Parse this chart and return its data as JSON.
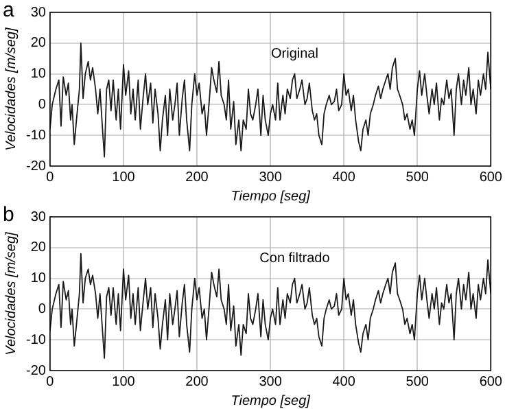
{
  "chart_data": [
    {
      "type": "line",
      "title": "a",
      "xlabel": "Tiempo [seg]",
      "ylabel": "Velocidades [m/seg]",
      "annotations": [
        "Original"
      ],
      "xlim": [
        0,
        600
      ],
      "ylim": [
        -20,
        30
      ],
      "xticks": [
        0,
        100,
        200,
        300,
        400,
        500,
        600
      ],
      "yticks": [
        -20,
        -10,
        0,
        10,
        20,
        30
      ],
      "grid": true,
      "x": [
        0,
        3,
        8,
        12,
        15,
        18,
        22,
        25,
        28,
        30,
        33,
        36,
        40,
        42,
        45,
        48,
        52,
        55,
        58,
        62,
        65,
        68,
        72,
        74,
        77,
        80,
        83,
        86,
        90,
        93,
        96,
        100,
        103,
        107,
        110,
        113,
        116,
        120,
        123,
        127,
        130,
        133,
        137,
        140,
        143,
        147,
        150,
        153,
        157,
        160,
        163,
        167,
        170,
        173,
        176,
        180,
        183,
        186,
        190,
        193,
        197,
        200,
        203,
        207,
        210,
        213,
        217,
        220,
        223,
        227,
        230,
        233,
        237,
        240,
        243,
        246,
        250,
        253,
        257,
        260,
        263,
        267,
        270,
        273,
        276,
        280,
        283,
        287,
        290,
        293,
        297,
        300,
        303,
        307,
        310,
        313,
        317,
        320,
        323,
        327,
        330,
        333,
        336,
        340,
        343,
        347,
        350,
        353,
        357,
        360,
        363,
        366,
        370,
        373,
        376,
        380,
        383,
        387,
        390,
        393,
        397,
        400,
        403,
        406,
        410,
        413,
        416,
        420,
        423,
        426,
        430,
        433,
        436,
        440,
        443,
        447,
        450,
        453,
        457,
        460,
        463,
        466,
        470,
        473,
        476,
        480,
        483,
        486,
        490,
        493,
        496,
        500,
        503,
        506,
        510,
        513,
        516,
        520,
        523,
        526,
        530,
        533,
        536,
        540,
        543,
        546,
        550,
        553,
        556,
        560,
        563,
        566,
        570,
        573,
        576,
        580,
        583,
        586,
        590,
        593,
        596,
        600
      ],
      "series": [
        {
          "color": "#1a1a1a",
          "values": [
            -8,
            0,
            5,
            8,
            -7,
            9,
            3,
            7,
            -5,
            0,
            -13,
            -5,
            5,
            20,
            2,
            10,
            14,
            8,
            12,
            5,
            -3,
            5,
            -10,
            -17,
            5,
            8,
            -2,
            8,
            -5,
            5,
            -8,
            13,
            3,
            11,
            -3,
            5,
            -5,
            8,
            -8,
            3,
            10,
            0,
            7,
            -6,
            5,
            -3,
            -15,
            -5,
            3,
            -10,
            5,
            -5,
            0,
            7,
            -10,
            2,
            8,
            -5,
            -15,
            0,
            10,
            3,
            7,
            -3,
            0,
            -10,
            2,
            12,
            8,
            4,
            14,
            3,
            0,
            -5,
            8,
            -8,
            1,
            -13,
            -5,
            -15,
            -5,
            -8,
            5,
            -3,
            -5,
            0,
            5,
            -10,
            3,
            -5,
            -10,
            -3,
            0,
            -5,
            7,
            -5,
            3,
            -3,
            5,
            2,
            8,
            10,
            2,
            5,
            8,
            0,
            2,
            7,
            -2,
            -5,
            -3,
            -10,
            -13,
            -3,
            0,
            3,
            0,
            1,
            5,
            -2,
            0,
            10,
            3,
            5,
            -2,
            3,
            -5,
            -12,
            -15,
            -8,
            -5,
            -10,
            -3,
            0,
            3,
            6,
            2,
            5,
            8,
            10,
            5,
            12,
            15,
            5,
            3,
            0,
            -5,
            -3,
            -8,
            -5,
            -10,
            5,
            11,
            3,
            10,
            3,
            -3,
            5,
            0,
            7,
            -5,
            2,
            0,
            8,
            2,
            5,
            -10,
            5,
            10,
            0,
            8,
            3,
            12,
            0,
            5,
            -3,
            8,
            3,
            10,
            5,
            17,
            5
          ]
        }
      ]
    },
    {
      "type": "line",
      "title": "b",
      "xlabel": "Tiempo [seg]",
      "ylabel": "Velocidades [m/seg]",
      "annotations": [
        "Con filtrado"
      ],
      "xlim": [
        0,
        600
      ],
      "ylim": [
        -20,
        30
      ],
      "xticks": [
        0,
        100,
        200,
        300,
        400,
        500,
        600
      ],
      "yticks": [
        -20,
        -10,
        0,
        10,
        20,
        30
      ],
      "grid": true,
      "x": [
        0,
        3,
        8,
        12,
        15,
        18,
        22,
        25,
        28,
        30,
        33,
        36,
        40,
        42,
        45,
        48,
        52,
        55,
        58,
        62,
        65,
        68,
        72,
        74,
        77,
        80,
        83,
        86,
        90,
        93,
        96,
        100,
        103,
        107,
        110,
        113,
        116,
        120,
        123,
        127,
        130,
        133,
        137,
        140,
        143,
        147,
        150,
        153,
        157,
        160,
        163,
        167,
        170,
        173,
        176,
        180,
        183,
        186,
        190,
        193,
        197,
        200,
        203,
        207,
        210,
        213,
        217,
        220,
        223,
        227,
        230,
        233,
        237,
        240,
        243,
        246,
        250,
        253,
        257,
        260,
        263,
        267,
        270,
        273,
        276,
        280,
        283,
        287,
        290,
        293,
        297,
        300,
        303,
        307,
        310,
        313,
        317,
        320,
        323,
        327,
        330,
        333,
        336,
        340,
        343,
        347,
        350,
        353,
        357,
        360,
        363,
        366,
        370,
        373,
        376,
        380,
        383,
        387,
        390,
        393,
        397,
        400,
        403,
        406,
        410,
        413,
        416,
        420,
        423,
        426,
        430,
        433,
        436,
        440,
        443,
        447,
        450,
        453,
        457,
        460,
        463,
        466,
        470,
        473,
        476,
        480,
        483,
        486,
        490,
        493,
        496,
        500,
        503,
        506,
        510,
        513,
        516,
        520,
        523,
        526,
        530,
        533,
        536,
        540,
        543,
        546,
        550,
        553,
        556,
        560,
        563,
        566,
        570,
        573,
        576,
        580,
        583,
        586,
        590,
        593,
        596,
        600
      ],
      "series": [
        {
          "color": "#1a1a1a",
          "values": [
            -7,
            0,
            5,
            8,
            -6,
            9,
            3,
            6,
            -5,
            0,
            -12,
            -5,
            5,
            18,
            2,
            10,
            13,
            8,
            11,
            5,
            -3,
            5,
            -9,
            -16,
            4,
            7,
            -2,
            7,
            -5,
            5,
            -7,
            13,
            3,
            11,
            -3,
            5,
            -5,
            7,
            -7,
            3,
            10,
            0,
            7,
            -6,
            5,
            -3,
            -13,
            -5,
            3,
            -10,
            5,
            -5,
            0,
            6,
            -9,
            2,
            8,
            -5,
            -14,
            0,
            10,
            3,
            7,
            -3,
            0,
            -10,
            2,
            12,
            8,
            4,
            13,
            3,
            0,
            -5,
            8,
            -7,
            1,
            -12,
            -5,
            -15,
            -5,
            -8,
            5,
            -3,
            -5,
            0,
            5,
            -9,
            3,
            -5,
            -10,
            -3,
            0,
            -5,
            7,
            -5,
            3,
            -3,
            5,
            2,
            8,
            10,
            2,
            5,
            8,
            0,
            2,
            7,
            -2,
            -5,
            -3,
            -9,
            -12,
            -3,
            0,
            3,
            0,
            1,
            5,
            -2,
            0,
            10,
            3,
            5,
            -2,
            3,
            -5,
            -11,
            -14,
            -8,
            -5,
            -10,
            -3,
            0,
            3,
            6,
            2,
            5,
            8,
            10,
            5,
            12,
            15,
            5,
            3,
            0,
            -5,
            -3,
            -8,
            -5,
            -10,
            5,
            11,
            3,
            10,
            3,
            -3,
            5,
            0,
            7,
            -5,
            2,
            0,
            8,
            2,
            5,
            -10,
            5,
            10,
            0,
            8,
            3,
            12,
            0,
            5,
            -3,
            8,
            3,
            10,
            5,
            16,
            5
          ]
        }
      ]
    }
  ]
}
